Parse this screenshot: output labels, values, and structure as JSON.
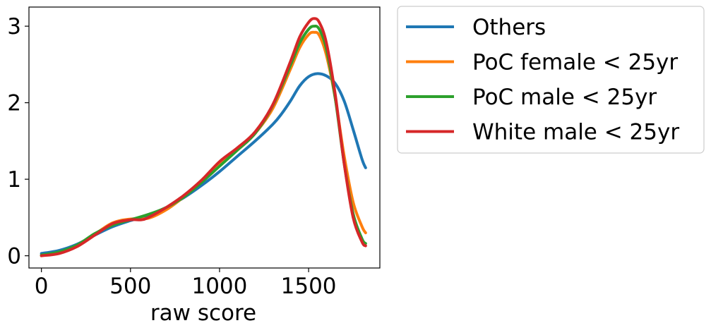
{
  "chart_data": {
    "type": "line",
    "title": "",
    "xlabel": "raw score",
    "ylabel": "",
    "xlim": [
      -70,
      1900
    ],
    "ylim": [
      -0.16,
      3.25
    ],
    "xticks": [
      0,
      500,
      1000,
      1500
    ],
    "yticks": [
      0,
      1,
      2,
      3
    ],
    "grid": false,
    "legend_position": "outside-right",
    "series": [
      {
        "name": "Others",
        "color": "#1f77b4",
        "points": [
          [
            0,
            0.03
          ],
          [
            100,
            0.07
          ],
          [
            200,
            0.15
          ],
          [
            300,
            0.27
          ],
          [
            400,
            0.38
          ],
          [
            500,
            0.46
          ],
          [
            600,
            0.53
          ],
          [
            700,
            0.63
          ],
          [
            800,
            0.76
          ],
          [
            900,
            0.92
          ],
          [
            1000,
            1.1
          ],
          [
            1100,
            1.3
          ],
          [
            1200,
            1.5
          ],
          [
            1300,
            1.72
          ],
          [
            1350,
            1.86
          ],
          [
            1400,
            2.03
          ],
          [
            1450,
            2.22
          ],
          [
            1500,
            2.34
          ],
          [
            1550,
            2.38
          ],
          [
            1600,
            2.35
          ],
          [
            1650,
            2.25
          ],
          [
            1700,
            2.02
          ],
          [
            1750,
            1.65
          ],
          [
            1800,
            1.26
          ],
          [
            1820,
            1.15
          ]
        ]
      },
      {
        "name": "PoC female < 25yr",
        "color": "#ff7f0e",
        "points": [
          [
            0,
            0.0
          ],
          [
            100,
            0.04
          ],
          [
            200,
            0.12
          ],
          [
            300,
            0.28
          ],
          [
            400,
            0.43
          ],
          [
            500,
            0.48
          ],
          [
            600,
            0.49
          ],
          [
            700,
            0.6
          ],
          [
            800,
            0.77
          ],
          [
            900,
            0.97
          ],
          [
            1000,
            1.19
          ],
          [
            1100,
            1.38
          ],
          [
            1200,
            1.6
          ],
          [
            1300,
            1.93
          ],
          [
            1400,
            2.45
          ],
          [
            1450,
            2.72
          ],
          [
            1500,
            2.89
          ],
          [
            1530,
            2.92
          ],
          [
            1560,
            2.88
          ],
          [
            1600,
            2.62
          ],
          [
            1650,
            2.05
          ],
          [
            1700,
            1.3
          ],
          [
            1750,
            0.7
          ],
          [
            1800,
            0.38
          ],
          [
            1820,
            0.3
          ]
        ]
      },
      {
        "name": "PoC male < 25yr",
        "color": "#2ca02c",
        "points": [
          [
            0,
            0.01
          ],
          [
            100,
            0.05
          ],
          [
            200,
            0.14
          ],
          [
            300,
            0.29
          ],
          [
            400,
            0.4
          ],
          [
            500,
            0.47
          ],
          [
            600,
            0.54
          ],
          [
            700,
            0.63
          ],
          [
            800,
            0.77
          ],
          [
            900,
            0.96
          ],
          [
            1000,
            1.17
          ],
          [
            1100,
            1.38
          ],
          [
            1200,
            1.6
          ],
          [
            1300,
            1.97
          ],
          [
            1400,
            2.5
          ],
          [
            1450,
            2.78
          ],
          [
            1500,
            2.96
          ],
          [
            1530,
            3.0
          ],
          [
            1560,
            2.96
          ],
          [
            1600,
            2.7
          ],
          [
            1650,
            2.05
          ],
          [
            1700,
            1.2
          ],
          [
            1750,
            0.55
          ],
          [
            1800,
            0.22
          ],
          [
            1820,
            0.16
          ]
        ]
      },
      {
        "name": "White male < 25yr",
        "color": "#d62728",
        "points": [
          [
            0,
            0.0
          ],
          [
            100,
            0.03
          ],
          [
            200,
            0.12
          ],
          [
            300,
            0.27
          ],
          [
            400,
            0.42
          ],
          [
            500,
            0.47
          ],
          [
            560,
            0.47
          ],
          [
            600,
            0.5
          ],
          [
            700,
            0.63
          ],
          [
            800,
            0.79
          ],
          [
            900,
            0.99
          ],
          [
            1000,
            1.23
          ],
          [
            1100,
            1.41
          ],
          [
            1200,
            1.62
          ],
          [
            1300,
            1.98
          ],
          [
            1400,
            2.55
          ],
          [
            1450,
            2.86
          ],
          [
            1500,
            3.05
          ],
          [
            1530,
            3.1
          ],
          [
            1560,
            3.05
          ],
          [
            1600,
            2.78
          ],
          [
            1650,
            2.1
          ],
          [
            1700,
            1.2
          ],
          [
            1750,
            0.5
          ],
          [
            1800,
            0.18
          ],
          [
            1820,
            0.13
          ]
        ]
      }
    ]
  }
}
